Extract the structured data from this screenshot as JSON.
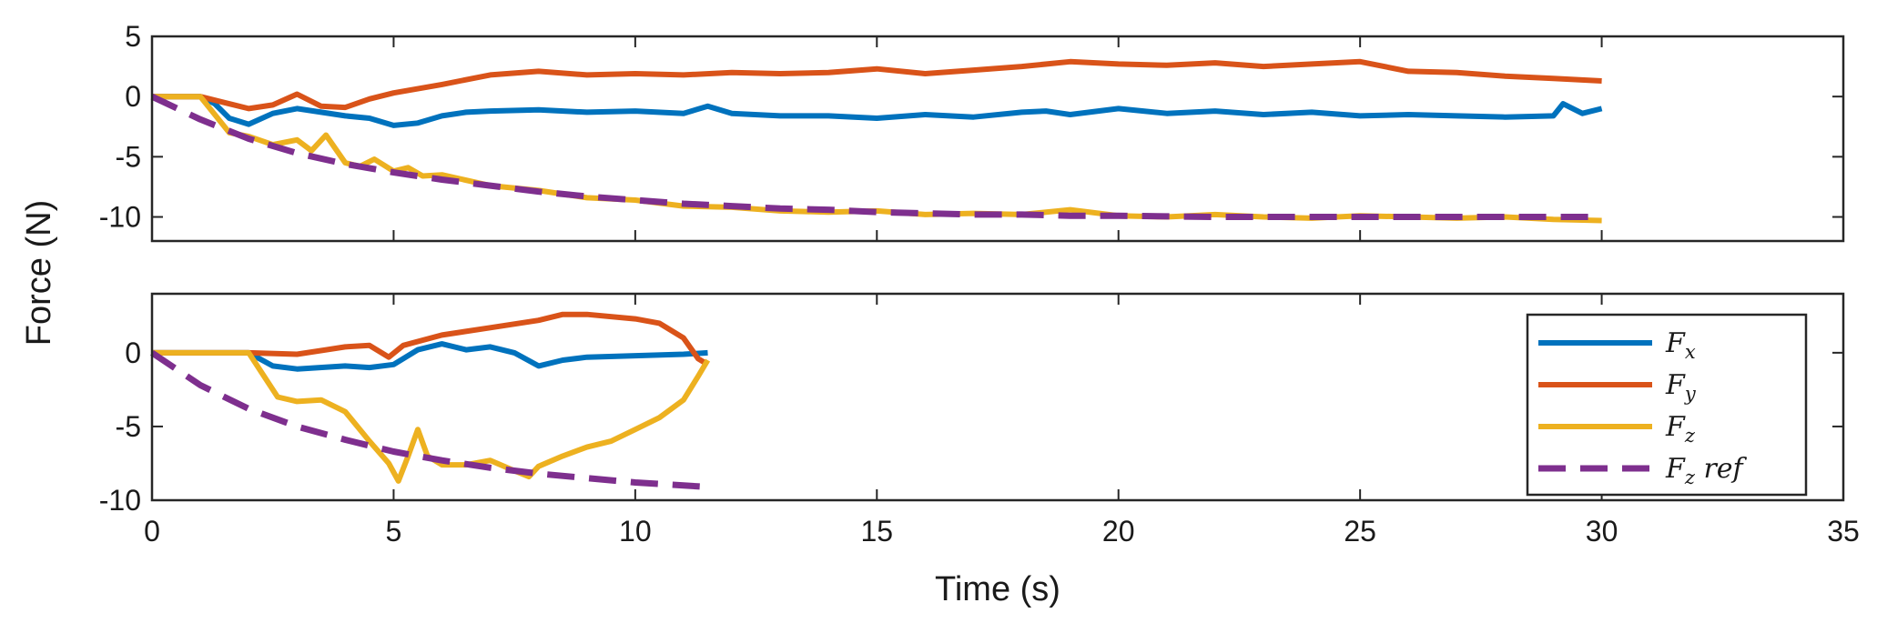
{
  "chart_data": {
    "type": "line",
    "xlabel": "Time (s)",
    "ylabel": "Force (N)",
    "xlim": [
      0,
      35
    ],
    "xticks": [
      "0",
      "5",
      "10",
      "15",
      "20",
      "25",
      "30",
      "35"
    ],
    "colors": {
      "Fx": "#0072BD",
      "Fy": "#D95319",
      "Fz": "#EDB120",
      "Fz_ref": "#7E2F8E"
    },
    "legend": {
      "location": "lower-right of bottom panel",
      "entries": [
        {
          "key": "Fx",
          "base": "F",
          "sub": "x",
          "extra": ""
        },
        {
          "key": "Fy",
          "base": "F",
          "sub": "y",
          "extra": ""
        },
        {
          "key": "Fz",
          "base": "F",
          "sub": "z",
          "extra": ""
        },
        {
          "key": "Fz_ref",
          "base": "F",
          "sub": "z",
          "extra": " ref"
        }
      ]
    },
    "panels": [
      {
        "name": "top",
        "ylim": [
          -12,
          5
        ],
        "yticks": [
          "5",
          "0",
          "-5",
          "-10"
        ],
        "series": [
          {
            "key": "Fx",
            "name": "Fx",
            "style": "solid",
            "x": [
              0,
              1,
              1.3,
              1.6,
              2,
              2.5,
              3,
              3.5,
              4,
              4.5,
              5,
              5.5,
              6,
              6.5,
              7,
              8,
              9,
              10,
              11,
              11.5,
              12,
              13,
              14,
              15,
              16,
              17,
              18,
              18.5,
              19,
              20,
              21,
              22,
              23,
              24,
              25,
              26,
              27,
              28,
              29,
              29.2,
              29.6,
              30
            ],
            "y": [
              0,
              0,
              -0.6,
              -1.8,
              -2.3,
              -1.4,
              -1.0,
              -1.3,
              -1.6,
              -1.8,
              -2.4,
              -2.2,
              -1.6,
              -1.3,
              -1.2,
              -1.1,
              -1.3,
              -1.2,
              -1.4,
              -0.8,
              -1.4,
              -1.6,
              -1.6,
              -1.8,
              -1.5,
              -1.7,
              -1.3,
              -1.2,
              -1.5,
              -1.0,
              -1.4,
              -1.2,
              -1.5,
              -1.3,
              -1.6,
              -1.5,
              -1.6,
              -1.7,
              -1.6,
              -0.6,
              -1.4,
              -1.0
            ]
          },
          {
            "key": "Fy",
            "name": "Fy",
            "style": "solid",
            "x": [
              0,
              1,
              1.5,
              2,
              2.5,
              3,
              3.5,
              4,
              4.5,
              5,
              6,
              7,
              8,
              9,
              10,
              11,
              12,
              13,
              14,
              15,
              16,
              17,
              18,
              19,
              20,
              21,
              22,
              23,
              24,
              25,
              26,
              27,
              28,
              29,
              30
            ],
            "y": [
              0,
              0,
              -0.5,
              -1.0,
              -0.7,
              0.2,
              -0.8,
              -0.9,
              -0.2,
              0.3,
              1.0,
              1.8,
              2.1,
              1.8,
              1.9,
              1.8,
              2.0,
              1.9,
              2.0,
              2.3,
              1.9,
              2.2,
              2.5,
              2.9,
              2.7,
              2.6,
              2.8,
              2.5,
              2.7,
              2.9,
              2.1,
              2.0,
              1.7,
              1.5,
              1.3
            ]
          },
          {
            "key": "Fz",
            "name": "Fz",
            "style": "solid",
            "x": [
              0,
              0.5,
              1,
              1.3,
              1.6,
              2,
              2.5,
              3,
              3.3,
              3.6,
              4,
              4.3,
              4.6,
              5,
              5.3,
              5.6,
              6,
              7,
              8,
              9,
              10,
              11,
              12,
              13,
              14,
              15,
              16,
              17,
              18,
              19,
              20,
              21,
              22,
              23,
              24,
              25,
              26,
              27,
              28,
              29,
              30
            ],
            "y": [
              0,
              0,
              0,
              -1.5,
              -3.0,
              -3.3,
              -4.0,
              -3.6,
              -4.5,
              -3.2,
              -5.5,
              -5.8,
              -5.2,
              -6.2,
              -5.9,
              -6.6,
              -6.5,
              -7.4,
              -7.8,
              -8.4,
              -8.6,
              -9.1,
              -9.2,
              -9.5,
              -9.6,
              -9.5,
              -9.8,
              -9.7,
              -9.8,
              -9.4,
              -9.9,
              -10.0,
              -9.8,
              -10.0,
              -10.1,
              -9.9,
              -10.0,
              -10.1,
              -10.0,
              -10.2,
              -10.3
            ]
          },
          {
            "key": "Fz_ref",
            "name": "Fz ref",
            "style": "dashed",
            "x": [
              0,
              1,
              2,
              3,
              4,
              5,
              6,
              7,
              8,
              9,
              10,
              11,
              12,
              13,
              14,
              15,
              16,
              17,
              18,
              19,
              20,
              21,
              22,
              23,
              24,
              25,
              26,
              27,
              28,
              29,
              30
            ],
            "y": [
              0,
              -1.9,
              -3.5,
              -4.7,
              -5.6,
              -6.3,
              -6.9,
              -7.4,
              -7.9,
              -8.3,
              -8.6,
              -8.9,
              -9.1,
              -9.3,
              -9.4,
              -9.6,
              -9.7,
              -9.8,
              -9.8,
              -9.9,
              -9.9,
              -9.95,
              -10,
              -10,
              -10,
              -10,
              -10,
              -10,
              -10,
              -10,
              -10
            ]
          }
        ]
      },
      {
        "name": "bottom",
        "ylim": [
          -10,
          4
        ],
        "yticks": [
          "0",
          "-5",
          "-10"
        ],
        "series": [
          {
            "key": "Fx",
            "name": "Fx",
            "style": "solid",
            "x": [
              0,
              2,
              2.5,
              3,
              4,
              4.5,
              5,
              5.5,
              6,
              6.5,
              7,
              7.5,
              8,
              8.5,
              9,
              10,
              11,
              11.5
            ],
            "y": [
              0,
              0,
              -0.9,
              -1.1,
              -0.9,
              -1.0,
              -0.8,
              0.2,
              0.6,
              0.2,
              0.4,
              0.0,
              -0.9,
              -0.5,
              -0.3,
              -0.2,
              -0.1,
              0
            ]
          },
          {
            "key": "Fy",
            "name": "Fy",
            "style": "solid",
            "x": [
              0,
              2,
              3,
              4,
              4.5,
              4.9,
              5.2,
              6,
              7,
              8,
              8.5,
              9,
              10,
              10.5,
              11,
              11.3,
              11.5
            ],
            "y": [
              0,
              0,
              -0.1,
              0.4,
              0.5,
              -0.3,
              0.5,
              1.2,
              1.7,
              2.2,
              2.6,
              2.6,
              2.3,
              2.0,
              1.0,
              -0.4,
              -0.8
            ]
          },
          {
            "key": "Fz",
            "name": "Fz",
            "style": "solid",
            "x": [
              0,
              2,
              2.3,
              2.6,
              3,
              3.5,
              4,
              4.5,
              4.9,
              5.1,
              5.3,
              5.5,
              5.7,
              6,
              6.5,
              7,
              7.5,
              7.8,
              8,
              8.5,
              9,
              9.5,
              10,
              10.5,
              11,
              11.3,
              11.5
            ],
            "y": [
              0,
              0,
              -1.5,
              -3.0,
              -3.3,
              -3.2,
              -4.0,
              -6.0,
              -7.5,
              -8.7,
              -7.0,
              -5.2,
              -7.0,
              -7.6,
              -7.6,
              -7.3,
              -8.0,
              -8.4,
              -7.7,
              -7.0,
              -6.4,
              -6.0,
              -5.2,
              -4.4,
              -3.2,
              -1.6,
              -0.5
            ]
          },
          {
            "key": "Fz_ref",
            "name": "Fz ref",
            "style": "dashed",
            "x": [
              0,
              1,
              2,
              3,
              4,
              5,
              6,
              7,
              8,
              9,
              10,
              11,
              11.5
            ],
            "y": [
              0,
              -2.2,
              -3.8,
              -5.0,
              -5.9,
              -6.7,
              -7.3,
              -7.8,
              -8.2,
              -8.5,
              -8.8,
              -9.0,
              -9.1
            ]
          }
        ]
      }
    ]
  }
}
